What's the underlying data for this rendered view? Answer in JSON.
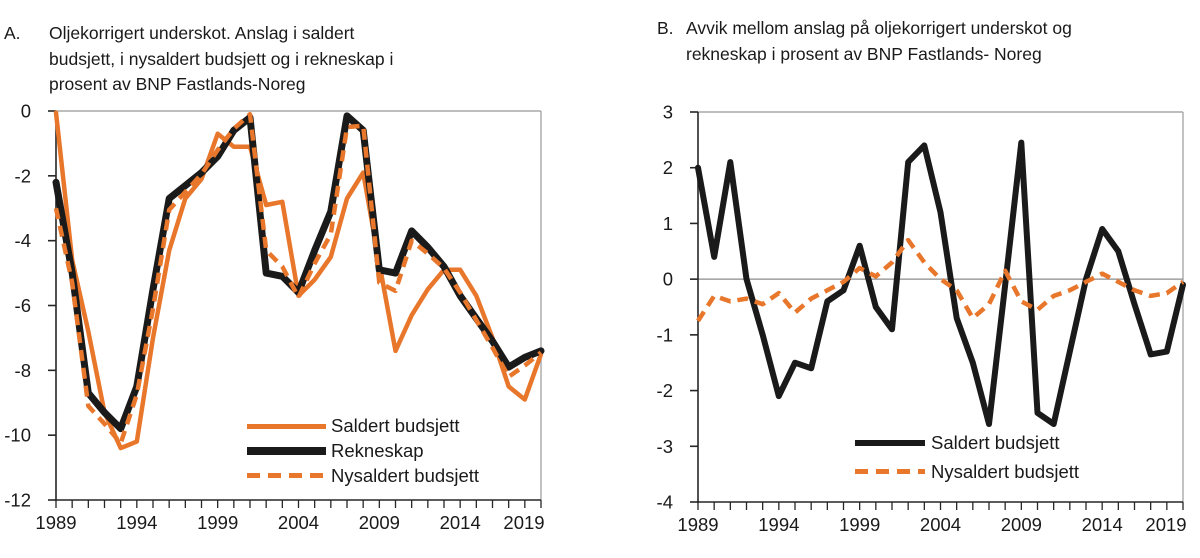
{
  "colors": {
    "orange": "#E8762B",
    "black": "#1A1A1A",
    "frame": "#A8A8A8",
    "axis": "#262626",
    "zero_line": "#8C8C8C",
    "text": "#1A1A1A"
  },
  "panel_a": {
    "label": "A.",
    "title_lines": [
      "Oljekorrigert underskot. Anslag i saldert",
      "budsjett, i nysaldert budsjett og i rekneskap i",
      "prosent av BNP Fastlands-Noreg"
    ],
    "legend": [
      {
        "label": "Saldert budsjett"
      },
      {
        "label": "Rekneskap"
      },
      {
        "label": "Nysaldert budsjett"
      }
    ]
  },
  "panel_b": {
    "label": "B.",
    "title_lines": [
      "Avvik mellom anslag på oljekorrigert underskot og",
      "rekneskap i prosent av BNP Fastlands- Noreg"
    ],
    "legend": [
      {
        "label": "Saldert budsjett"
      },
      {
        "label": "Nysaldert budsjett"
      }
    ]
  },
  "chart_data": [
    {
      "type": "line",
      "panel": "A",
      "title": "Oljekorrigert underskot. Anslag i saldert budsjett, i nysaldert budsjett og i rekneskap i prosent av BNP Fastlands-Noreg",
      "xlabel": "",
      "ylabel": "",
      "grid": false,
      "legend_position": "inside-lower-right",
      "ylim": [
        -12,
        0
      ],
      "yticks": [
        0,
        -2,
        -4,
        -6,
        -8,
        -10,
        -12
      ],
      "xlabel_ticks": [
        1989,
        1994,
        1999,
        2004,
        2009,
        2014,
        2019
      ],
      "x": [
        1989,
        1990,
        1991,
        1992,
        1993,
        1994,
        1995,
        1996,
        1997,
        1998,
        1999,
        2000,
        2001,
        2002,
        2003,
        2004,
        2005,
        2006,
        2007,
        2008,
        2009,
        2010,
        2011,
        2012,
        2013,
        2014,
        2015,
        2016,
        2017,
        2018,
        2019
      ],
      "series": [
        {
          "name": "Saldert budsjett",
          "color_key": "orange",
          "dash": false,
          "width": 4.5,
          "values": [
            -0.05,
            -4.6,
            -6.8,
            -9.3,
            -10.4,
            -10.2,
            -7.0,
            -4.3,
            -2.7,
            -2.1,
            -0.7,
            -1.1,
            -1.1,
            -2.9,
            -2.8,
            -5.7,
            -5.2,
            -4.5,
            -2.7,
            -1.9,
            -4.7,
            -7.4,
            -6.3,
            -5.5,
            -4.9,
            -4.9,
            -5.7,
            -7.0,
            -8.5,
            -8.9,
            -7.5
          ]
        },
        {
          "name": "Rekneskap",
          "color_key": "black",
          "dash": false,
          "width": 7,
          "values": [
            -2.2,
            -5.0,
            -8.7,
            -9.3,
            -9.8,
            -8.5,
            -5.5,
            -2.7,
            -2.3,
            -1.9,
            -1.4,
            -0.6,
            -0.2,
            -5.0,
            -5.1,
            -5.6,
            -4.3,
            -3.1,
            -0.15,
            -0.6,
            -4.9,
            -5.0,
            -3.7,
            -4.2,
            -4.8,
            -5.7,
            -6.4,
            -7.1,
            -7.9,
            -7.6,
            -7.4
          ]
        },
        {
          "name": "Nysaldert budsjett",
          "color_key": "orange",
          "dash": true,
          "width": 4.5,
          "values": [
            -3.0,
            -5.3,
            -9.1,
            -9.65,
            -10.25,
            -8.75,
            -6.1,
            -3.05,
            -2.5,
            -1.95,
            -1.2,
            -0.55,
            -0.1,
            -4.3,
            -4.8,
            -5.75,
            -4.7,
            -3.8,
            -0.5,
            -0.45,
            -5.3,
            -5.55,
            -4.0,
            -4.4,
            -4.85,
            -5.6,
            -6.45,
            -7.3,
            -8.2,
            -7.85,
            -7.45
          ]
        }
      ]
    },
    {
      "type": "line",
      "panel": "B",
      "title": "Avvik mellom anslag på oljekorrigert underskot og rekneskap i prosent av BNP Fastlands- Noreg",
      "xlabel": "",
      "ylabel": "",
      "grid": false,
      "zero_line": true,
      "legend_position": "inside-lower-right",
      "ylim": [
        -4,
        3
      ],
      "yticks": [
        3,
        2,
        1,
        0,
        -1,
        -2,
        -3,
        -4
      ],
      "xlabel_ticks": [
        1989,
        1994,
        1999,
        2004,
        2009,
        2014,
        2019
      ],
      "x": [
        1989,
        1990,
        1991,
        1992,
        1993,
        1994,
        1995,
        1996,
        1997,
        1998,
        1999,
        2000,
        2001,
        2002,
        2003,
        2004,
        2005,
        2006,
        2007,
        2008,
        2009,
        2010,
        2011,
        2012,
        2013,
        2014,
        2015,
        2016,
        2017,
        2018,
        2019
      ],
      "series": [
        {
          "name": "Saldert budsjett",
          "color_key": "black",
          "dash": false,
          "width": 6,
          "values": [
            2.0,
            0.4,
            2.1,
            0.0,
            -1.0,
            -2.1,
            -1.5,
            -1.6,
            -0.4,
            -0.2,
            0.6,
            -0.5,
            -0.9,
            2.1,
            2.4,
            1.2,
            -0.7,
            -1.5,
            -2.6,
            -0.1,
            2.45,
            -2.4,
            -2.6,
            -1.3,
            0.0,
            0.9,
            0.5,
            -0.45,
            -1.35,
            -1.3,
            -0.1
          ]
        },
        {
          "name": "Nysaldert budsjett",
          "color_key": "orange",
          "dash": true,
          "width": 4.5,
          "values": [
            -0.75,
            -0.3,
            -0.4,
            -0.35,
            -0.45,
            -0.25,
            -0.6,
            -0.35,
            -0.2,
            -0.05,
            0.2,
            0.05,
            0.3,
            0.7,
            0.3,
            0.0,
            -0.2,
            -0.7,
            -0.45,
            0.15,
            -0.4,
            -0.55,
            -0.3,
            -0.2,
            -0.05,
            0.1,
            -0.05,
            -0.2,
            -0.3,
            -0.25,
            -0.05
          ]
        }
      ]
    }
  ]
}
